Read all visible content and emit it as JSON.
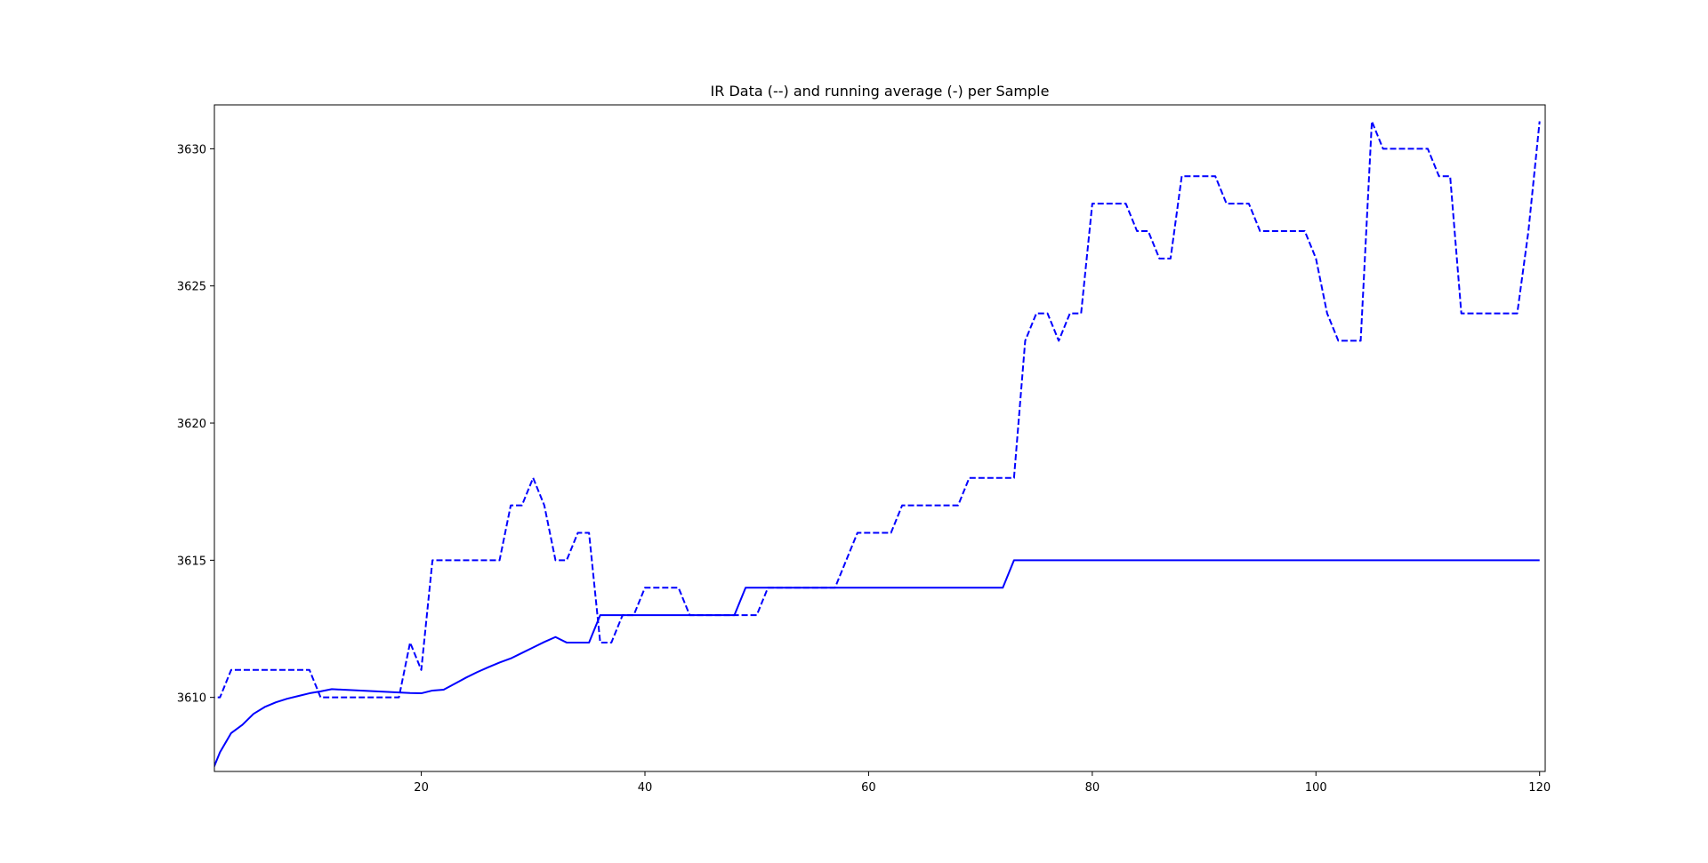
{
  "chart_data": {
    "type": "line",
    "title": "IR Data (--) and running average (-) per Sample",
    "xlabel": "",
    "ylabel": "",
    "xlim": [
      1.5,
      120.5
    ],
    "ylim": [
      3607.3,
      3631.6
    ],
    "x_ticks": [
      20,
      40,
      60,
      80,
      100,
      120
    ],
    "y_ticks": [
      3610,
      3615,
      3620,
      3625,
      3630
    ],
    "grid": false,
    "color": "#0000ff",
    "series": [
      {
        "style": "dashed",
        "x": [
          1,
          2,
          3,
          4,
          5,
          6,
          7,
          8,
          9,
          10,
          11,
          12,
          13,
          14,
          15,
          16,
          17,
          18,
          19,
          20,
          21,
          22,
          23,
          24,
          25,
          26,
          27,
          28,
          29,
          30,
          31,
          32,
          33,
          34,
          35,
          36,
          37,
          38,
          39,
          40,
          41,
          42,
          43,
          44,
          45,
          46,
          47,
          48,
          49,
          50,
          51,
          52,
          53,
          54,
          55,
          56,
          57,
          58,
          59,
          60,
          61,
          62,
          63,
          64,
          65,
          66,
          67,
          68,
          69,
          70,
          71,
          72,
          73,
          74,
          75,
          76,
          77,
          78,
          79,
          80,
          81,
          82,
          83,
          84,
          85,
          86,
          87,
          88,
          89,
          90,
          91,
          92,
          93,
          94,
          95,
          96,
          97,
          98,
          99,
          100,
          101,
          102,
          103,
          104,
          105,
          106,
          107,
          108,
          109,
          110,
          111,
          112,
          113,
          114,
          115,
          116,
          117,
          118,
          119,
          120
        ],
        "values": [
          3610,
          3610,
          3611,
          3611,
          3611,
          3611,
          3611,
          3611,
          3611,
          3611,
          3610,
          3610,
          3610,
          3610,
          3610,
          3610,
          3610,
          3610,
          3612,
          3611,
          3615,
          3615,
          3615,
          3615,
          3615,
          3615,
          3615,
          3617,
          3617,
          3618,
          3617,
          3615,
          3615,
          3616,
          3616,
          3612,
          3612,
          3613,
          3613,
          3614,
          3614,
          3614,
          3614,
          3613,
          3613,
          3613,
          3613,
          3613,
          3613,
          3613,
          3614,
          3614,
          3614,
          3614,
          3614,
          3614,
          3614,
          3615,
          3616,
          3616,
          3616,
          3616,
          3617,
          3617,
          3617,
          3617,
          3617,
          3617,
          3618,
          3618,
          3618,
          3618,
          3618,
          3623,
          3624,
          3624,
          3623,
          3624,
          3624,
          3628,
          3628,
          3628,
          3628,
          3627,
          3627,
          3626,
          3626,
          3629,
          3629,
          3629,
          3629,
          3628,
          3628,
          3628,
          3627,
          3627,
          3627,
          3627,
          3627,
          3626,
          3624,
          3623,
          3623,
          3623,
          3631,
          3630,
          3630,
          3630,
          3630,
          3630,
          3629,
          3629,
          3624,
          3624,
          3624,
          3624,
          3624,
          3624,
          3627,
          3631
        ]
      },
      {
        "style": "solid",
        "x": [
          1,
          2,
          3,
          4,
          5,
          6,
          7,
          8,
          9,
          10,
          11,
          12,
          13,
          14,
          15,
          16,
          17,
          18,
          19,
          20,
          21,
          22,
          23,
          24,
          25,
          26,
          27,
          28,
          29,
          30,
          31,
          32,
          33,
          34,
          35,
          36,
          37,
          38,
          39,
          40,
          41,
          42,
          43,
          44,
          45,
          46,
          47,
          48,
          49,
          50,
          51,
          52,
          53,
          54,
          55,
          56,
          57,
          58,
          59,
          60,
          61,
          62,
          63,
          64,
          65,
          66,
          67,
          68,
          69,
          70,
          71,
          72,
          73,
          74,
          75,
          76,
          77,
          78,
          79,
          80,
          81,
          82,
          83,
          84,
          85,
          86,
          87,
          88,
          89,
          90,
          91,
          92,
          93,
          94,
          95,
          96,
          97,
          98,
          99,
          100,
          101,
          102,
          103,
          104,
          105,
          106,
          107,
          108,
          109,
          110,
          111,
          112,
          113,
          114,
          115,
          116,
          117,
          118,
          119,
          120
        ],
        "values": [
          3607.0,
          3608.0,
          3608.7,
          3609.0,
          3609.4,
          3609.65,
          3609.82,
          3609.95,
          3610.05,
          3610.15,
          3610.22,
          3610.3,
          3610.28,
          3610.26,
          3610.24,
          3610.22,
          3610.2,
          3610.18,
          3610.16,
          3610.15,
          3610.25,
          3610.28,
          3610.5,
          3610.72,
          3610.92,
          3611.1,
          3611.27,
          3611.42,
          3611.62,
          3611.82,
          3612.02,
          3612.2,
          3612.0,
          3612.0,
          3612.0,
          3613,
          3613,
          3613,
          3613,
          3613,
          3613,
          3613,
          3613,
          3613,
          3613,
          3613,
          3613,
          3613,
          3614,
          3614,
          3614,
          3614,
          3614,
          3614,
          3614,
          3614,
          3614,
          3614,
          3614,
          3614,
          3614,
          3614,
          3614,
          3614,
          3614,
          3614,
          3614,
          3614,
          3614,
          3614,
          3614,
          3614,
          3615,
          3615,
          3615,
          3615,
          3615,
          3615,
          3615,
          3615,
          3615,
          3615,
          3615,
          3615,
          3615,
          3615,
          3615,
          3615,
          3615,
          3615,
          3615,
          3615,
          3615,
          3615,
          3615,
          3615,
          3615,
          3615,
          3615,
          3615,
          3615,
          3615,
          3615,
          3615,
          3615,
          3615,
          3615,
          3615,
          3615,
          3615,
          3615,
          3615,
          3615,
          3615,
          3615,
          3615,
          3615,
          3615,
          3615,
          3615
        ]
      }
    ]
  }
}
